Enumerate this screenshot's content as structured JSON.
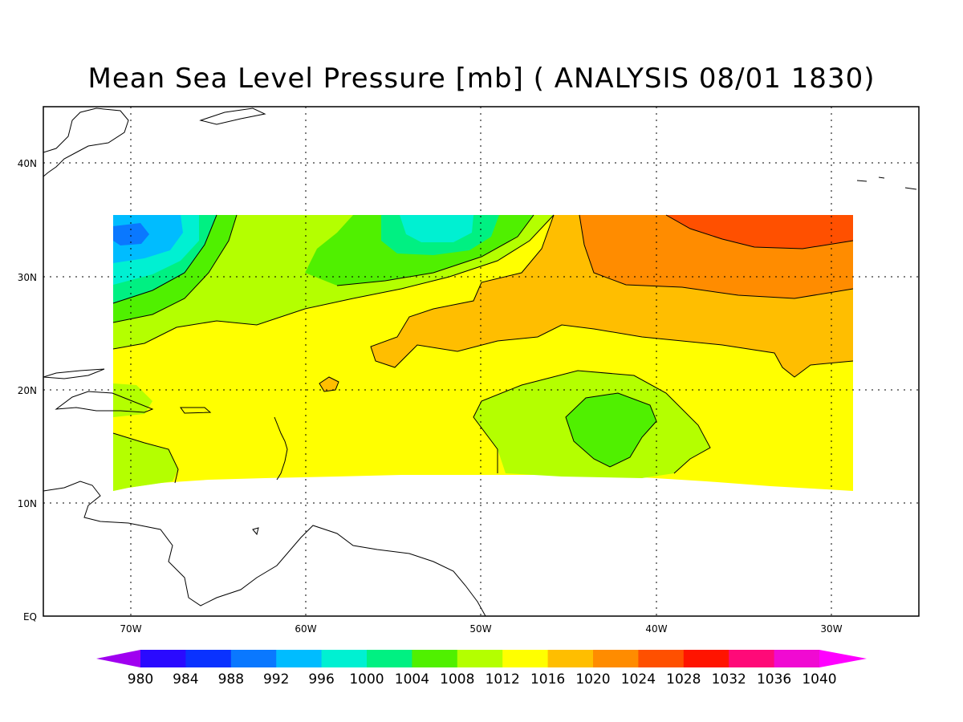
{
  "title": "Mean Sea Level Pressure [mb] ( ANALYSIS 08/01 1830)",
  "axes": {
    "lon_labels": [
      "70W",
      "60W",
      "50W",
      "40W",
      "30W"
    ],
    "lat_labels": [
      "EQ",
      "10N",
      "20N",
      "30N",
      "40N"
    ],
    "lon_range": [
      -75,
      -25
    ],
    "lat_range": [
      0,
      45
    ],
    "grid": true
  },
  "colorbar": {
    "levels": [
      "980",
      "984",
      "988",
      "992",
      "996",
      "1000",
      "1004",
      "1008",
      "1012",
      "1016",
      "1020",
      "1024",
      "1028",
      "1032",
      "1036",
      "1040"
    ],
    "colors": [
      "#a000f0",
      "#2a0aff",
      "#0a32ff",
      "#0a78ff",
      "#00bcff",
      "#00f0d2",
      "#00f082",
      "#50f000",
      "#b4ff00",
      "#ffff00",
      "#ffbe00",
      "#ff8c00",
      "#ff5000",
      "#ff1400",
      "#ff0a78",
      "#f00ad2",
      "#ff00ff"
    ]
  },
  "field": {
    "colors": {
      "c996": "#00bcff",
      "c1000": "#00f0d2",
      "c1004": "#00f082",
      "c1008": "#50f000",
      "c1012": "#b4ff00",
      "c1016": "#ffff00",
      "c1020": "#ffbe00",
      "c1024": "#ff8c00",
      "c1028": "#ff5000"
    }
  }
}
